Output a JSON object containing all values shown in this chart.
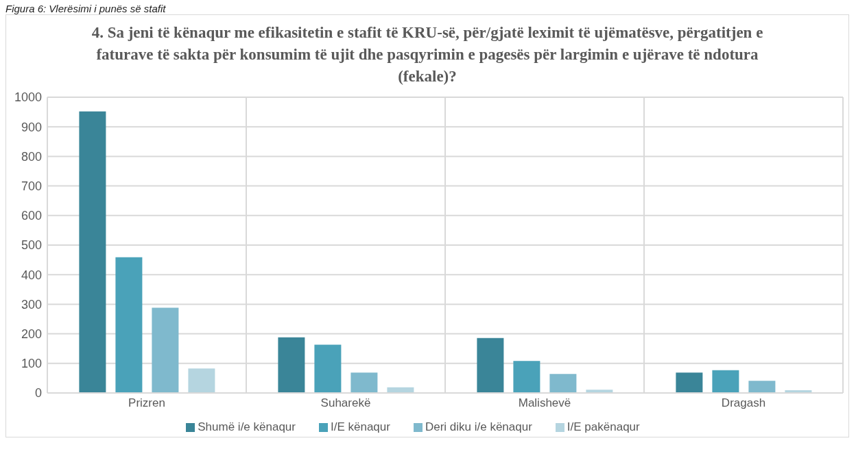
{
  "chart_data": {
    "type": "bar",
    "title": "4. Sa jeni të kënaqur me efikasitetin e stafit të KRU-së, për/gjatë leximit të ujëmatësve, përgatitjen e faturave të sakta për konsumim të ujit dhe pasqyrimin e pagesës për largimin e ujërave të ndotura (fekale)?",
    "annotations": [
      "Figura 6: Vlerësimi i punës së stafit"
    ],
    "categories": [
      "Prizren",
      "Suharekë",
      "Malishevë",
      "Dragash"
    ],
    "series": [
      {
        "name": "Shumë i/e kënaqur",
        "color": "#3a8598",
        "values": [
          952,
          188,
          186,
          69
        ]
      },
      {
        "name": "I/E kënaqur",
        "color": "#4aa2b9",
        "values": [
          459,
          163,
          108,
          77
        ]
      },
      {
        "name": "Deri diku i/e kënaqur",
        "color": "#7fb9cd",
        "values": [
          288,
          69,
          64,
          41
        ]
      },
      {
        "name": "I/E pakënaqur",
        "color": "#b5d5e0",
        "values": [
          83,
          19,
          11,
          9
        ]
      }
    ],
    "ylim": [
      0,
      1000
    ],
    "yticks": [
      0,
      100,
      200,
      300,
      400,
      500,
      600,
      700,
      800,
      900,
      1000
    ],
    "grid": true,
    "legend": "bottom"
  }
}
